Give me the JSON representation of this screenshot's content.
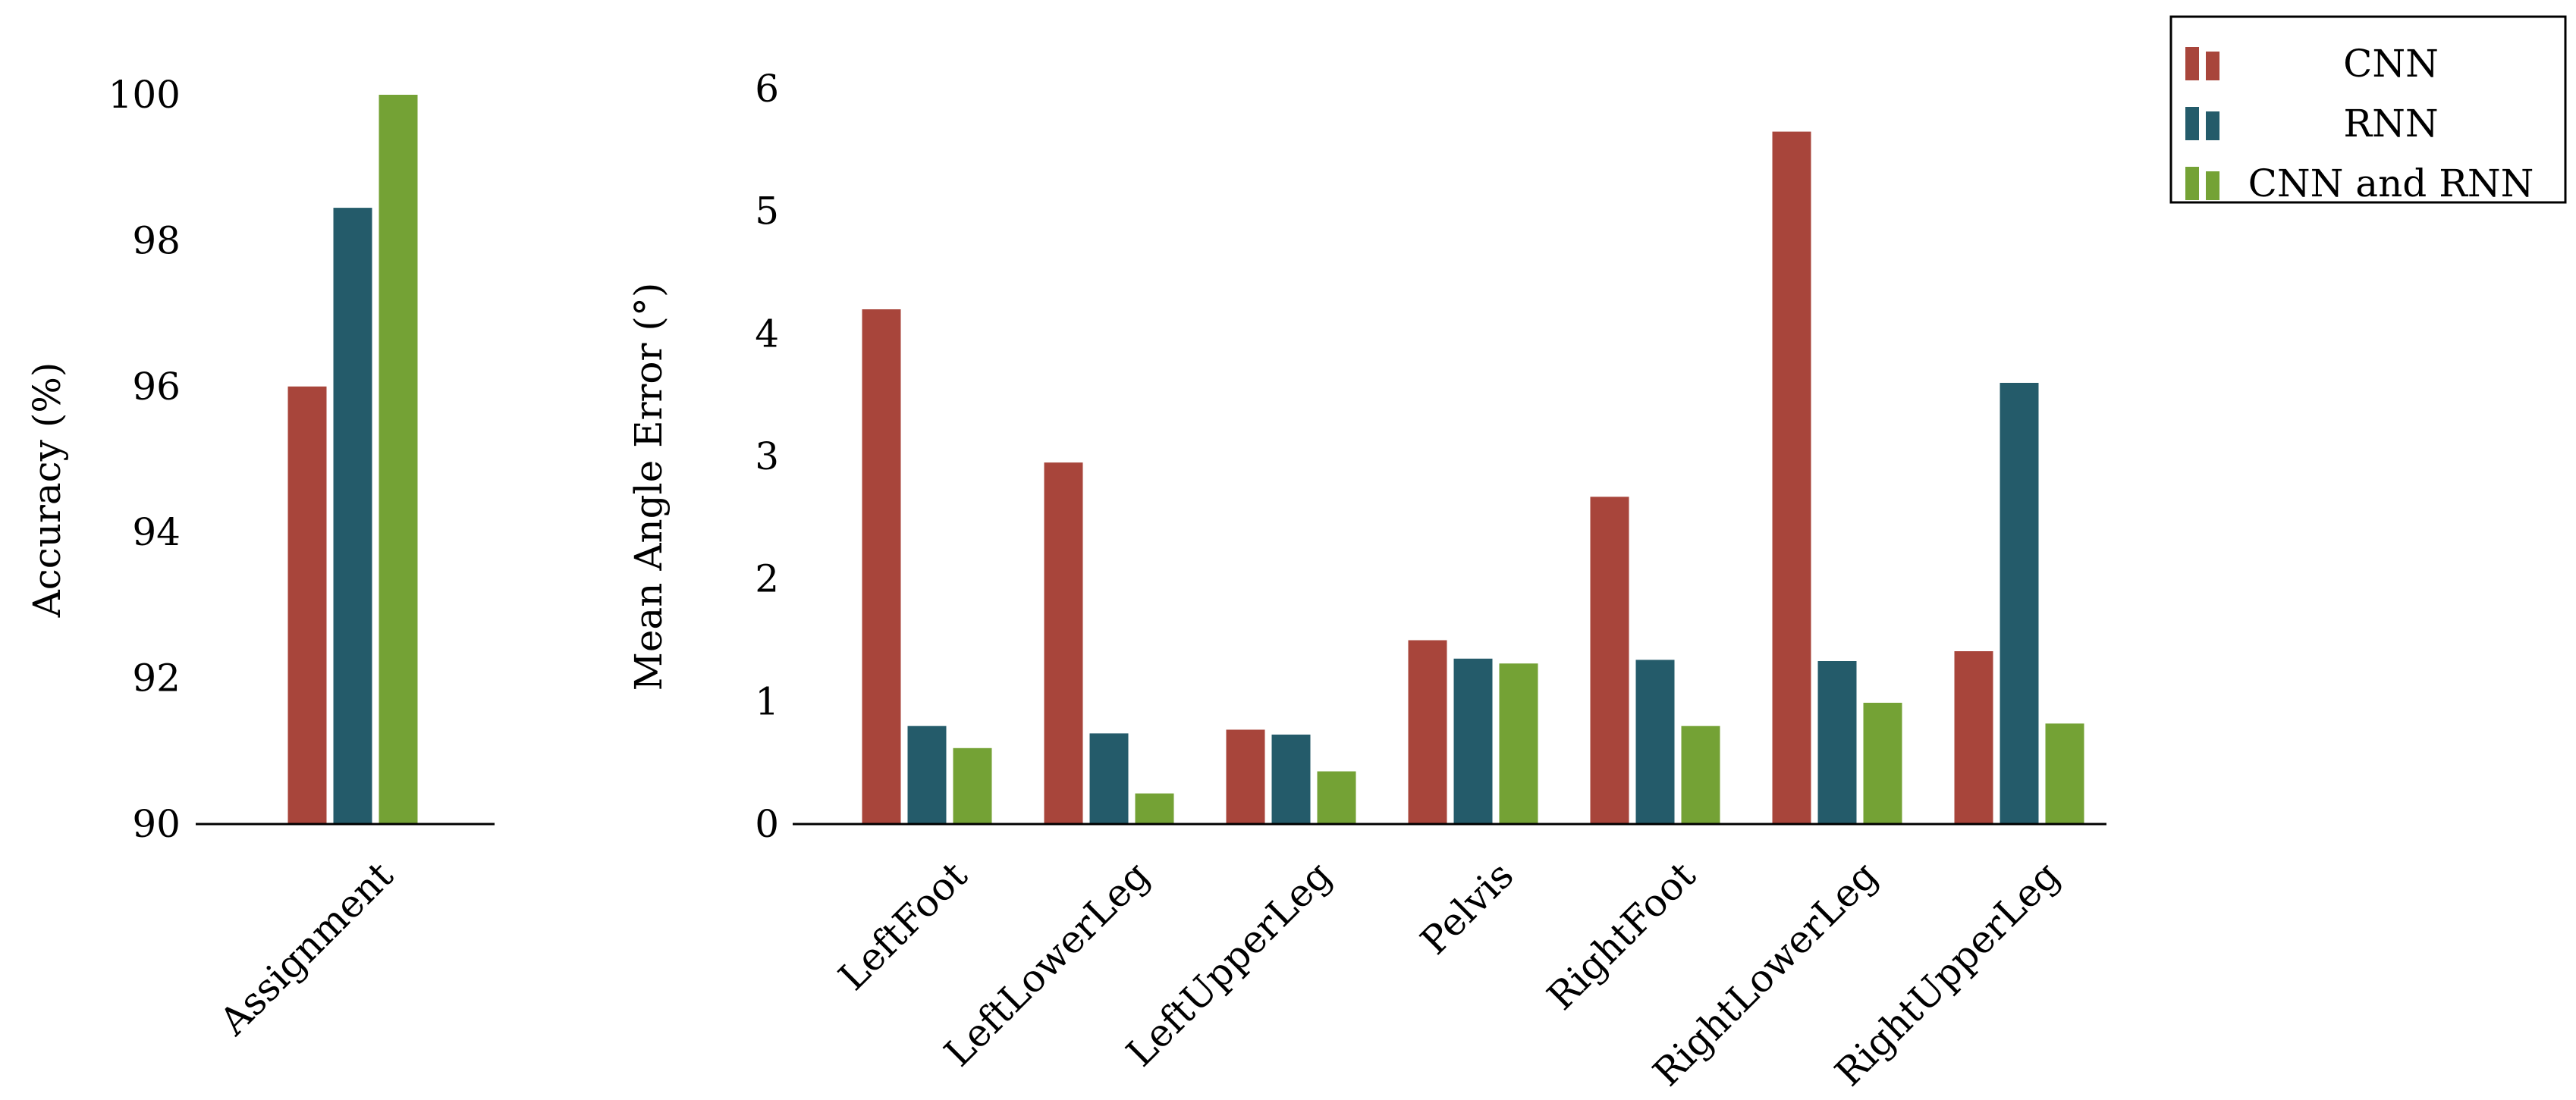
{
  "colors": {
    "CNN": "#a8453b",
    "RNN": "#245b6a",
    "CNN and RNN": "#74a235"
  },
  "legend": {
    "placement": "top-right",
    "entries": [
      "CNN",
      "RNN",
      "CNN and RNN"
    ]
  },
  "chart_data": [
    {
      "type": "bar",
      "categories": [
        "Assignment"
      ],
      "series": [
        {
          "name": "CNN",
          "values": [
            96.0
          ]
        },
        {
          "name": "RNN",
          "values": [
            98.45
          ]
        },
        {
          "name": "CNN and RNN",
          "values": [
            100.0
          ]
        }
      ],
      "ylabel": "Accuracy (%)",
      "ylim": [
        90,
        100
      ],
      "yticks": [
        90,
        92,
        94,
        96,
        98,
        100
      ],
      "grid": false
    },
    {
      "type": "bar",
      "categories": [
        "LeftFoot",
        "LeftLowerLeg",
        "LeftUpperLeg",
        "Pelvis",
        "RightFoot",
        "RightLowerLeg",
        "RightUpperLeg"
      ],
      "series": [
        {
          "name": "CNN",
          "values": [
            4.2,
            2.95,
            0.77,
            1.5,
            2.67,
            5.65,
            1.41
          ]
        },
        {
          "name": "RNN",
          "values": [
            0.8,
            0.74,
            0.73,
            1.35,
            1.34,
            1.33,
            3.6
          ]
        },
        {
          "name": "CNN and RNN",
          "values": [
            0.62,
            0.25,
            0.43,
            1.31,
            0.8,
            0.99,
            0.82
          ]
        }
      ],
      "ylabel": "Mean Angle Error (°)",
      "ylim": [
        0,
        6
      ],
      "yticks": [
        0,
        1,
        2,
        3,
        4,
        5,
        6
      ],
      "grid": false
    }
  ]
}
